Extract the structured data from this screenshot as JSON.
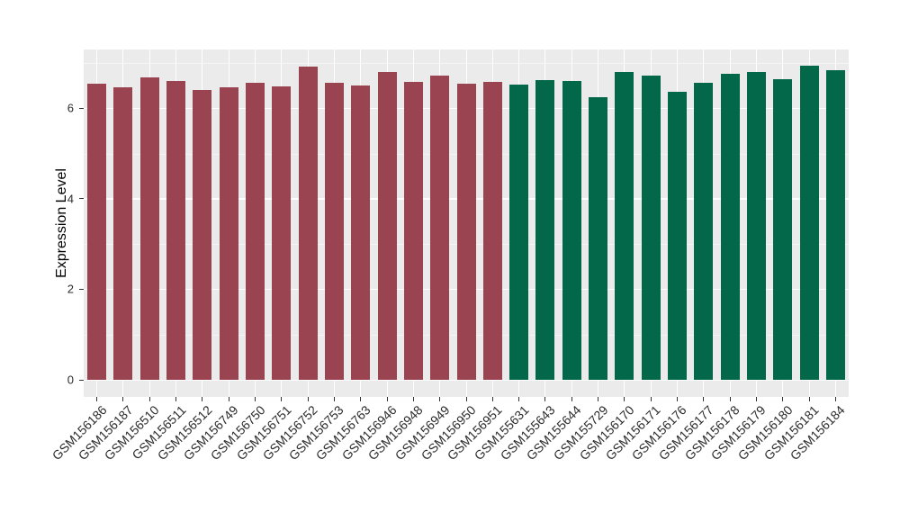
{
  "figure": {
    "background_color": "#FFFFFF",
    "panel_background_color": "#EBEBEB",
    "grid_major_color": "#FFFFFF",
    "grid_minor_color": "#F5F5F5",
    "axis_text_color": "#2B2B2B",
    "axis_title_color": "#000000",
    "tick_mark_color": "#333333"
  },
  "chart_data": {
    "type": "bar",
    "title": "",
    "xlabel": "",
    "ylabel": "Expression Level",
    "ylim": [
      -0.38,
      7.3
    ],
    "yticks": [
      0,
      2,
      4,
      6
    ],
    "ytick_labels": [
      "0",
      "2",
      "4",
      "6"
    ],
    "yticks_minor": [
      1,
      3,
      5,
      7
    ],
    "grid": "on",
    "legend": "none",
    "categories": [
      "GSM156186",
      "GSM156187",
      "GSM156510",
      "GSM156511",
      "GSM156512",
      "GSM156749",
      "GSM156750",
      "GSM156751",
      "GSM156752",
      "GSM156753",
      "GSM156763",
      "GSM156946",
      "GSM156948",
      "GSM156949",
      "GSM156950",
      "GSM156951",
      "GSM155631",
      "GSM155643",
      "GSM155644",
      "GSM155729",
      "GSM156170",
      "GSM156171",
      "GSM156176",
      "GSM156177",
      "GSM156178",
      "GSM156179",
      "GSM156180",
      "GSM156181",
      "GSM156184"
    ],
    "values": [
      6.55,
      6.47,
      6.68,
      6.61,
      6.41,
      6.46,
      6.57,
      6.48,
      6.91,
      6.56,
      6.51,
      6.79,
      6.58,
      6.71,
      6.55,
      6.59,
      6.53,
      6.62,
      6.6,
      6.24,
      6.79,
      6.71,
      6.37,
      6.57,
      6.76,
      6.79,
      6.65,
      6.93,
      6.83
    ],
    "groups": {
      "split_index": 16,
      "colors": [
        "#9A4452",
        "#03684A"
      ]
    }
  }
}
